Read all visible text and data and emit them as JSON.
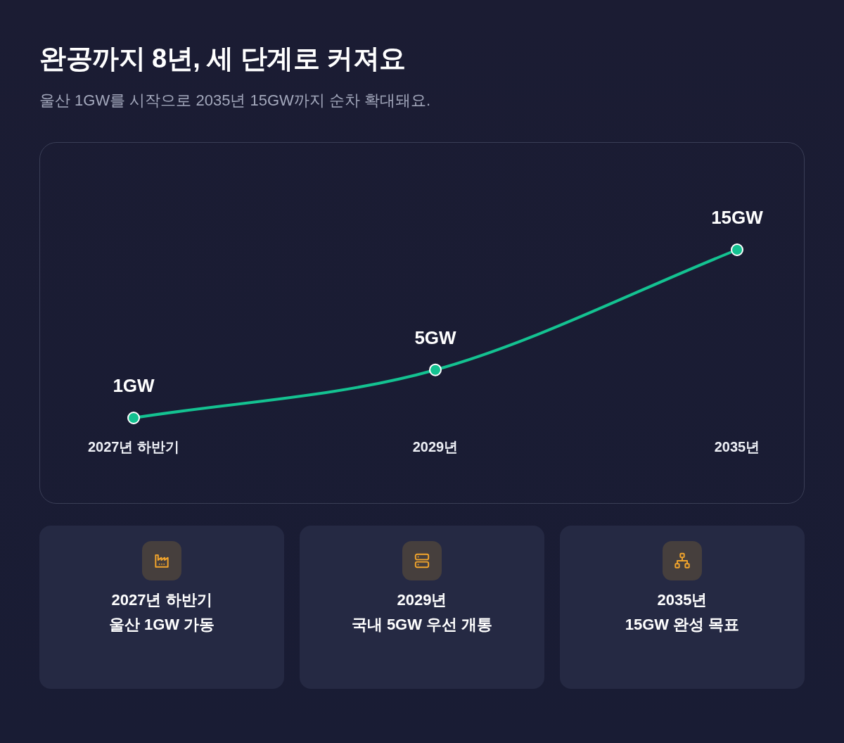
{
  "chart_data": [
    {
      "type": "line",
      "title": "완공까지 8년, 세 단계로 커져요",
      "subtitle": "울산 1GW를 시작으로 2035년 15GW까지 순차 확대돼요.",
      "categories": [
        "2027년 하반기",
        "2029년",
        "2035년"
      ],
      "values": [
        1,
        5,
        15
      ],
      "value_labels": [
        "1GW",
        "5GW",
        "15GW"
      ],
      "color": "#14c291",
      "tick_labels": "x",
      "marker": "circle",
      "line_style": "solid"
    },
    {
      "type": "other",
      "annotations": [
        "2027년 하반기\n울산 1GW 가동",
        "2029년\n국내 5GW 우선 개통",
        "2035년\n15GW 완성 목표"
      ]
    }
  ]
}
